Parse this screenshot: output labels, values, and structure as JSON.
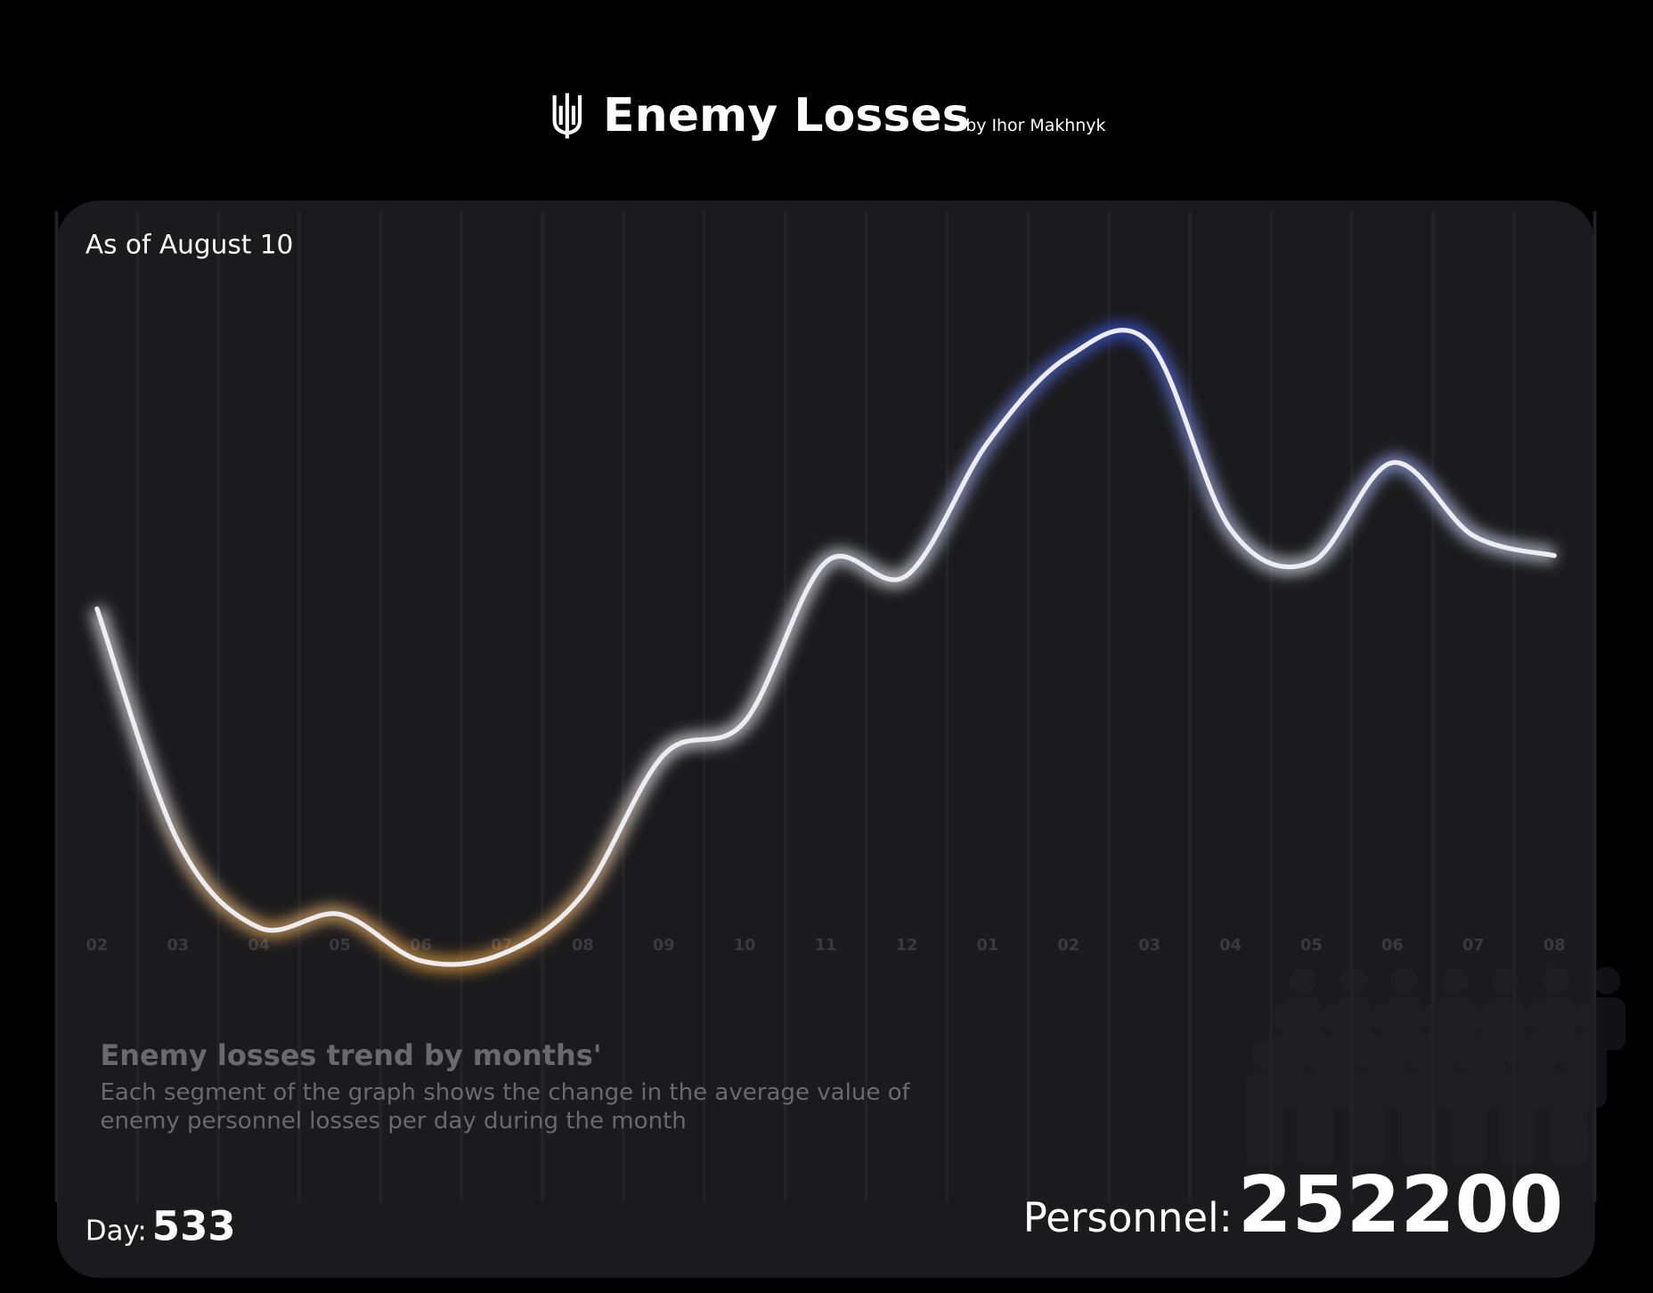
{
  "header": {
    "title": "Enemy Losses",
    "byline": "by Ihor Makhnyk"
  },
  "date_label": "As of August 10",
  "chart_data": {
    "type": "line",
    "categories": [
      "02",
      "03",
      "04",
      "05",
      "06",
      "07",
      "08",
      "09",
      "10",
      "11",
      "12",
      "01",
      "02",
      "03",
      "04",
      "05",
      "06",
      "07",
      "08"
    ],
    "values": [
      56,
      21,
      8,
      10,
      3,
      4,
      13,
      34,
      39,
      63,
      61,
      81,
      94,
      96,
      68,
      63,
      78,
      67,
      64
    ],
    "ylim": [
      0,
      100
    ],
    "color": "#ececf2",
    "low_color": "#f0a030",
    "high_color": "#2f4fe0",
    "title": "Enemy losses trend by months'",
    "description": [
      "Each segment of the graph shows the change in the average value of",
      "enemy personnel losses per day during the month"
    ]
  },
  "footer": {
    "day_label": "Day:",
    "day": 533,
    "personnel_label": "Personnel:",
    "personnel": 252200
  }
}
